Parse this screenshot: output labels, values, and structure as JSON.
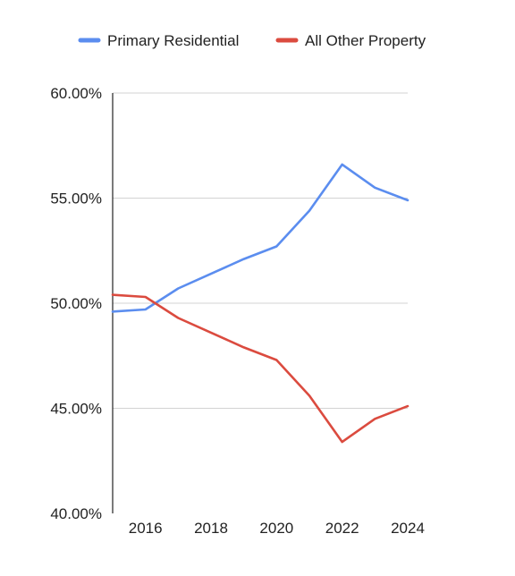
{
  "chart_data": {
    "type": "line",
    "title": "",
    "xlabel": "",
    "ylabel": "",
    "x": [
      2015,
      2016,
      2017,
      2018,
      2019,
      2020,
      2021,
      2022,
      2023,
      2024
    ],
    "xlim": [
      2015,
      2024
    ],
    "x_ticks": [
      2016,
      2018,
      2020,
      2022,
      2024
    ],
    "x_tick_labels": [
      "2016",
      "2018",
      "2020",
      "2022",
      "2024"
    ],
    "ylim": [
      40,
      60
    ],
    "y_ticks": [
      40,
      45,
      50,
      55,
      60
    ],
    "y_tick_labels": [
      "40.00%",
      "45.00%",
      "50.00%",
      "55.00%",
      "60.00%"
    ],
    "grid": true,
    "legend_position": "top",
    "series": [
      {
        "name": "Primary Residential",
        "color": "#5B8DEF",
        "values": [
          49.6,
          49.7,
          50.7,
          51.4,
          52.1,
          52.7,
          54.4,
          56.6,
          55.5,
          54.9
        ]
      },
      {
        "name": "All Other Property",
        "color": "#DB4B3F",
        "values": [
          50.4,
          50.3,
          49.3,
          48.6,
          47.9,
          47.3,
          45.6,
          43.4,
          44.5,
          45.1
        ]
      }
    ]
  }
}
